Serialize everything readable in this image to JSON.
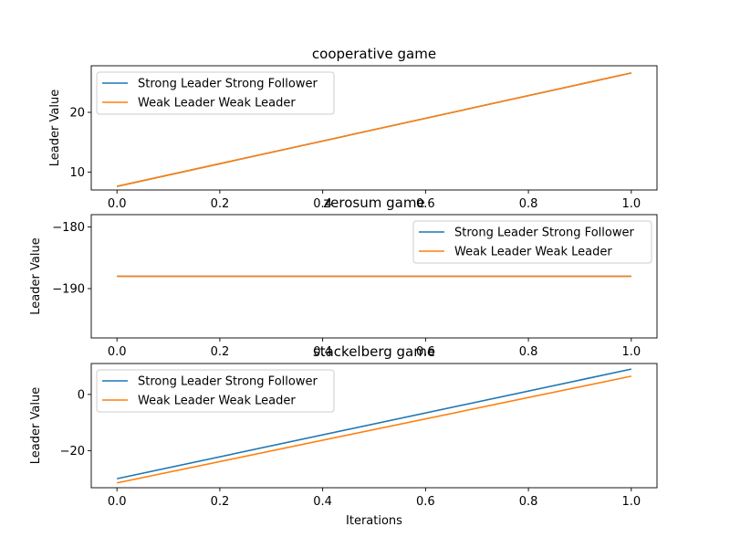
{
  "figure": {
    "xlabel": "Iterations"
  },
  "chart_data": [
    {
      "type": "line",
      "title": "cooperative game",
      "xlabel": "",
      "ylabel": "Leader Value",
      "xlim": [
        -0.05,
        1.05
      ],
      "ylim": [
        7,
        27.8
      ],
      "xticks": [
        0.0,
        0.2,
        0.4,
        0.6,
        0.8,
        1.0
      ],
      "xtick_labels": [
        "0.0",
        "0.2",
        "0.4",
        "0.6",
        "0.8",
        "1.0"
      ],
      "yticks": [
        10,
        20
      ],
      "ytick_labels": [
        "10",
        "20"
      ],
      "legend": "upper-left",
      "grid": false,
      "x": [
        0,
        1
      ],
      "series": [
        {
          "name": "Strong Leader Strong Follower",
          "color": "#1f77b4",
          "values": [
            7.6,
            26.6
          ]
        },
        {
          "name": "Weak Leader Weak Leader",
          "color": "#ff7f0e",
          "values": [
            7.6,
            26.6
          ]
        }
      ]
    },
    {
      "type": "line",
      "title": "zerosum game",
      "xlabel": "",
      "ylabel": "Leader Value",
      "xlim": [
        -0.05,
        1.05
      ],
      "ylim": [
        -198,
        -178
      ],
      "xticks": [
        0.0,
        0.2,
        0.4,
        0.6,
        0.8,
        1.0
      ],
      "xtick_labels": [
        "0.0",
        "0.2",
        "0.4",
        "0.6",
        "0.8",
        "1.0"
      ],
      "yticks": [
        -190,
        -180
      ],
      "ytick_labels": [
        "−190",
        "−180"
      ],
      "legend": "upper-right",
      "grid": false,
      "x": [
        0,
        1
      ],
      "series": [
        {
          "name": "Strong Leader Strong Follower",
          "color": "#1f77b4",
          "values": [
            -188,
            -188
          ]
        },
        {
          "name": "Weak Leader Weak Leader",
          "color": "#ff7f0e",
          "values": [
            -188,
            -188
          ]
        }
      ]
    },
    {
      "type": "line",
      "title": "stackelberg game",
      "xlabel": "Iterations",
      "ylabel": "Leader Value",
      "xlim": [
        -0.05,
        1.05
      ],
      "ylim": [
        -33.2,
        11
      ],
      "xticks": [
        0.0,
        0.2,
        0.4,
        0.6,
        0.8,
        1.0
      ],
      "xtick_labels": [
        "0.0",
        "0.2",
        "0.4",
        "0.6",
        "0.8",
        "1.0"
      ],
      "yticks": [
        -20,
        0
      ],
      "ytick_labels": [
        "−20",
        "0"
      ],
      "legend": "upper-left",
      "grid": false,
      "x": [
        0,
        1
      ],
      "series": [
        {
          "name": "Strong Leader Strong Follower",
          "color": "#1f77b4",
          "values": [
            -30,
            9
          ]
        },
        {
          "name": "Weak Leader Weak Leader",
          "color": "#ff7f0e",
          "values": [
            -31.5,
            6.5
          ]
        }
      ]
    }
  ]
}
